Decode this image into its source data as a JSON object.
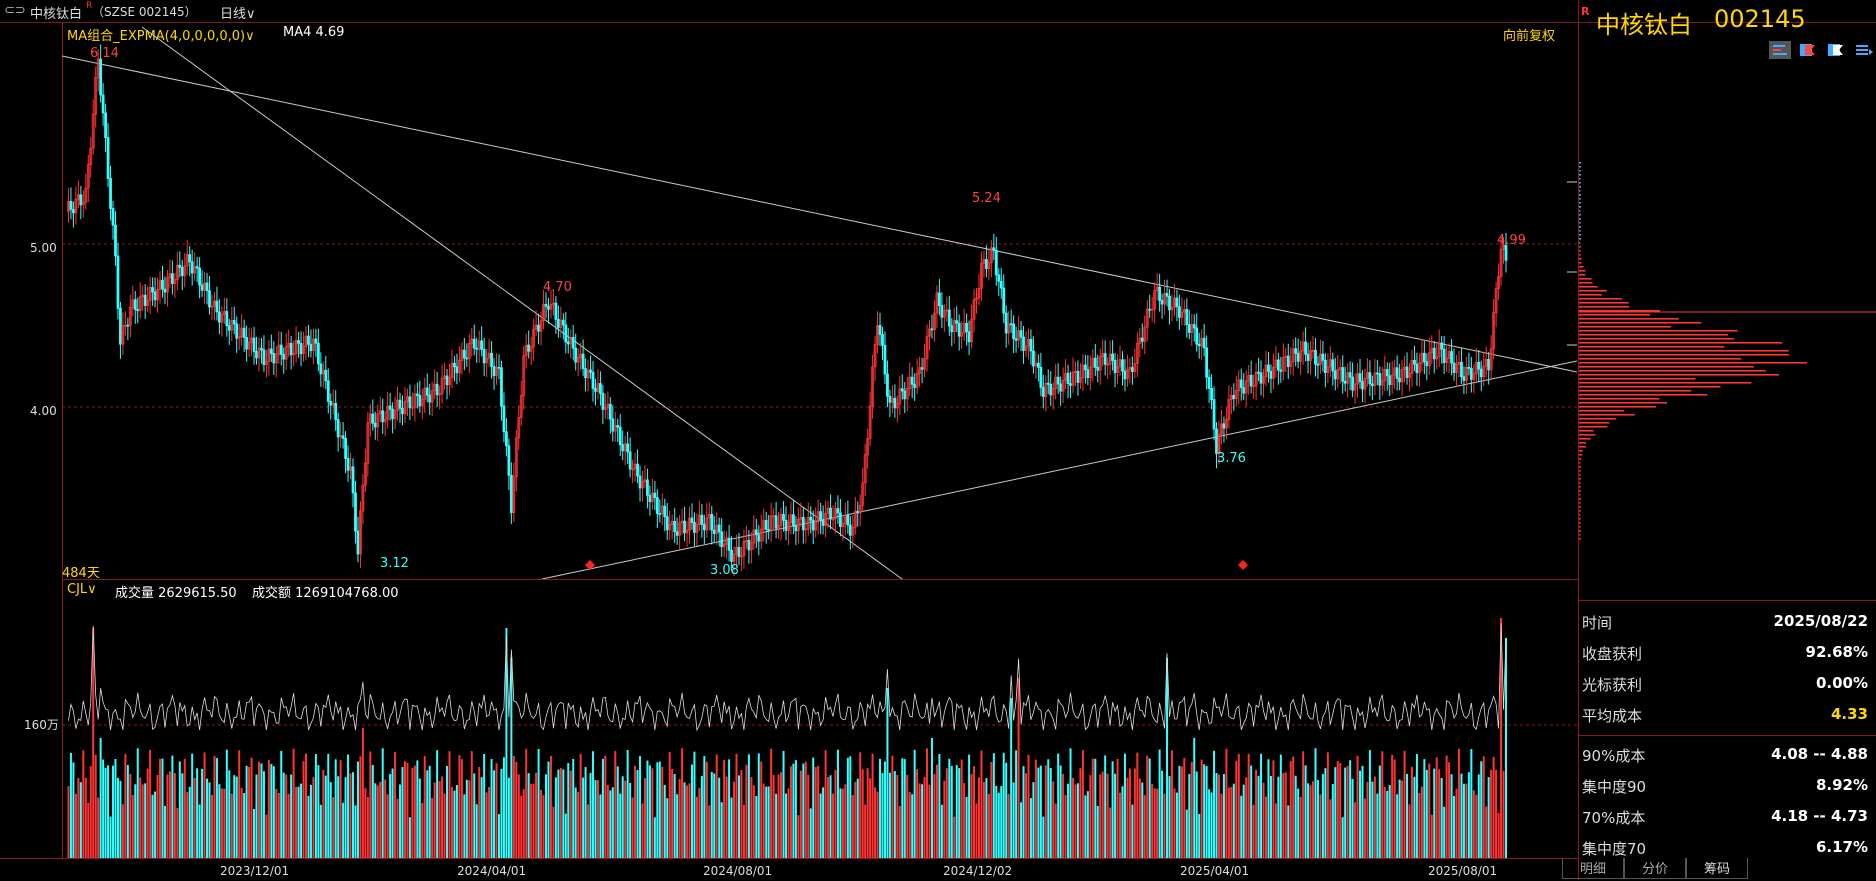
{
  "titlebar": {
    "window_icon": "link-icon",
    "title": "中核钛白",
    "title_superscript": "R",
    "code": "（SZSE 002145）",
    "period": "日线"
  },
  "main_chart": {
    "indicator": "MA组合_EXPMA(4,0,0,0,0,0)",
    "ma_label": "MA4 4.69",
    "adjust_label": "向前复权",
    "days_label": "484天",
    "price_labels": {
      "high1": "6.14",
      "high2": "4.70",
      "high3": "5.24",
      "high4": "4.99",
      "low1": "3.12",
      "low2": "3.08",
      "low3": "3.76"
    },
    "y_ticks": [
      "5.00",
      "4.00"
    ]
  },
  "volume_chart": {
    "indicator": "CJL",
    "volume_label": "成交量 2629615.50",
    "amount_label": "成交额 1269104768.00",
    "y_tick": "160万"
  },
  "x_axis": [
    "2023/12/01",
    "2024/04/01",
    "2024/08/01",
    "2024/12/02",
    "2025/04/01",
    "2025/08/01"
  ],
  "side_panel": {
    "r_badge": "R",
    "stock_name": "中核钛白",
    "stock_code": "002145",
    "toolbar_icons": [
      "bar-chart-icon",
      "flag-icon",
      "flag-outline-icon",
      "list-icon"
    ],
    "rows": [
      {
        "k": "时间",
        "v": "2025/08/22"
      },
      {
        "k": "收盘获利",
        "v": "92.68%"
      },
      {
        "k": "光标获利",
        "v": "0.00%"
      },
      {
        "k": "平均成本",
        "v": "4.33"
      }
    ],
    "rows2": [
      {
        "k": "90%成本",
        "v": "4.08 -- 4.88"
      },
      {
        "k": "集中度90",
        "v": "8.92%"
      },
      {
        "k": "70%成本",
        "v": "4.18 -- 4.73"
      },
      {
        "k": "集中度70",
        "v": "6.17%"
      }
    ],
    "tabs": [
      "明细",
      "分价",
      "筹码"
    ]
  },
  "colors": {
    "up": "#ff3333",
    "down": "#33ffff",
    "accent": "#ffd700",
    "border": "#8b1a1a"
  }
}
